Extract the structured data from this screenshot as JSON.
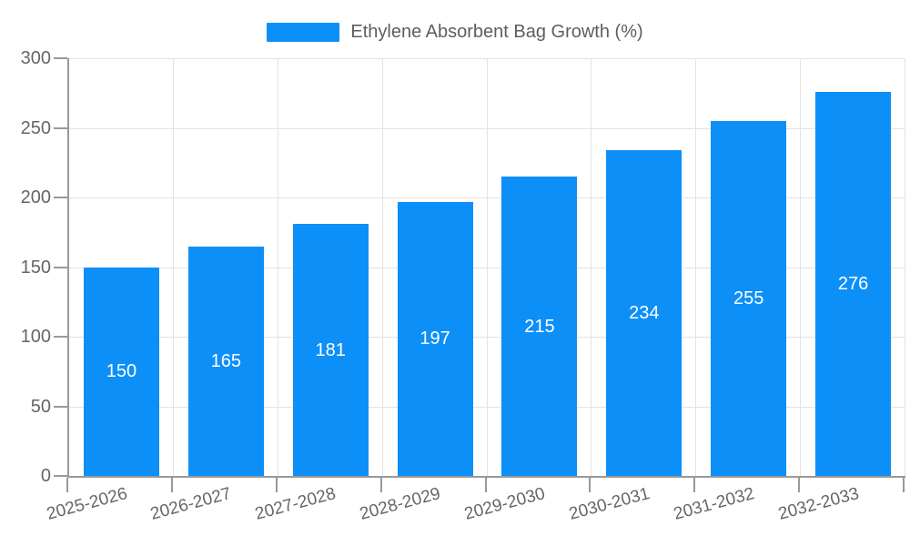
{
  "legend": {
    "label": "Ethylene Absorbent Bag Growth (%)",
    "marker_color": "#0D8FF8"
  },
  "chart_data": {
    "type": "bar",
    "title": "Ethylene Absorbent Bag Growth (%)",
    "categories": [
      "2025-2026",
      "2026-2027",
      "2027-2028",
      "2028-2029",
      "2029-2030",
      "2030-2031",
      "2031-2032",
      "2032-2033"
    ],
    "values": [
      150,
      165,
      181,
      197,
      215,
      234,
      255,
      276
    ],
    "xlabel": "",
    "ylabel": "",
    "ylim": [
      0,
      300
    ],
    "yticks": [
      0,
      50,
      100,
      150,
      200,
      250,
      300
    ],
    "grid": true,
    "legend_position": "top-center",
    "bar_color": "#0D8FF8",
    "value_label_color": "#FFFFFF",
    "axis_color": "#999999",
    "grid_color": "#E2E2E2",
    "tick_label_color": "#666666",
    "x_label_rotation_deg": -15
  }
}
